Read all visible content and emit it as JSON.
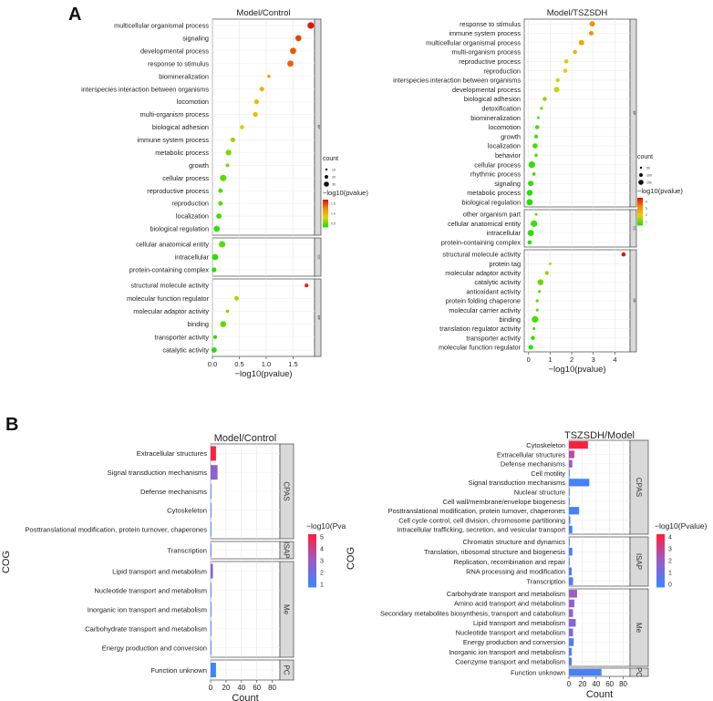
{
  "figure": {
    "panel_a_label": "A",
    "panel_b_label": "B"
  },
  "chart_data": [
    {
      "id": "A1",
      "type": "scatter",
      "title": "Model/Control",
      "xlabel": "−log10(pvalue)",
      "xlim": [
        0,
        1.9
      ],
      "xticks": [
        0.0,
        0.5,
        1.0,
        1.5
      ],
      "xtick_labels": [
        "0.0",
        "0.5",
        "1.0",
        "1.5"
      ],
      "legend_size_title": "count",
      "legend_size_labels": [
        "10",
        "20",
        "30"
      ],
      "legend_color_title": "−log10(pvalue)",
      "legend_color_labels": [
        "1.5",
        "1.0",
        "0.5"
      ],
      "groups": [
        {
          "name": "BP",
          "terms": [
            {
              "term": "multicellular organismal process",
              "x": 1.83,
              "count": 32
            },
            {
              "term": "signaling",
              "x": 1.6,
              "count": 26
            },
            {
              "term": "developmental process",
              "x": 1.5,
              "count": 28
            },
            {
              "term": "response to stimulus",
              "x": 1.45,
              "count": 27
            },
            {
              "term": "biomineralization",
              "x": 1.05,
              "count": 3
            },
            {
              "term": "interspecies interaction between organisms",
              "x": 0.92,
              "count": 12
            },
            {
              "term": "locomotion",
              "x": 0.82,
              "count": 13
            },
            {
              "term": "multi-organism process",
              "x": 0.8,
              "count": 14
            },
            {
              "term": "biological adhesion",
              "x": 0.55,
              "count": 9
            },
            {
              "term": "immune system process",
              "x": 0.38,
              "count": 12
            },
            {
              "term": "metabolic process",
              "x": 0.3,
              "count": 22
            },
            {
              "term": "growth",
              "x": 0.28,
              "count": 4
            },
            {
              "term": "cellular process",
              "x": 0.2,
              "count": 30
            },
            {
              "term": "reproductive process",
              "x": 0.15,
              "count": 10
            },
            {
              "term": "reproduction",
              "x": 0.15,
              "count": 10
            },
            {
              "term": "localization",
              "x": 0.12,
              "count": 17
            },
            {
              "term": "biological regulation",
              "x": 0.08,
              "count": 26
            }
          ]
        },
        {
          "name": "CC",
          "terms": [
            {
              "term": "cellular anatomical entity",
              "x": 0.18,
              "count": 30
            },
            {
              "term": "intracellular",
              "x": 0.05,
              "count": 28
            },
            {
              "term": "protein-containing complex",
              "x": 0.03,
              "count": 12
            }
          ]
        },
        {
          "name": "MF",
          "terms": [
            {
              "term": "structural molecule activity",
              "x": 1.75,
              "count": 6
            },
            {
              "term": "molecular function regulator",
              "x": 0.45,
              "count": 10
            },
            {
              "term": "molecular adaptor activity",
              "x": 0.28,
              "count": 3
            },
            {
              "term": "binding",
              "x": 0.2,
              "count": 25
            },
            {
              "term": "transporter activity",
              "x": 0.05,
              "count": 6
            },
            {
              "term": "catalytic activity",
              "x": 0.03,
              "count": 18
            }
          ]
        }
      ]
    },
    {
      "id": "A2",
      "type": "scatter",
      "title": "Model/TSZSDH",
      "xlabel": "−log10(pvalue)",
      "xlim": [
        -0.2,
        4.7
      ],
      "xticks": [
        0,
        1,
        2,
        3,
        4
      ],
      "xtick_labels": [
        "0",
        "1",
        "2",
        "3",
        "4"
      ],
      "legend_size_title": "count",
      "legend_size_labels": [
        "50",
        "100",
        "150"
      ],
      "legend_color_title": "−log10(pvalue)",
      "legend_color_labels": [
        "4",
        "3",
        "2",
        "1"
      ],
      "groups": [
        {
          "name": "BP",
          "terms": [
            {
              "term": "response to stimulus",
              "x": 2.95,
              "count": 90
            },
            {
              "term": "immune system process",
              "x": 2.9,
              "count": 50
            },
            {
              "term": "multicellular organismal process",
              "x": 2.45,
              "count": 100
            },
            {
              "term": "multi-organism process",
              "x": 2.15,
              "count": 40
            },
            {
              "term": "reproductive process",
              "x": 1.75,
              "count": 40
            },
            {
              "term": "reproduction",
              "x": 1.7,
              "count": 40
            },
            {
              "term": "interspecies interaction between organisms",
              "x": 1.35,
              "count": 35
            },
            {
              "term": "developmental process",
              "x": 1.3,
              "count": 100
            },
            {
              "term": "biological adhesion",
              "x": 0.75,
              "count": 35
            },
            {
              "term": "detoxification",
              "x": 0.6,
              "count": 8
            },
            {
              "term": "biomineralization",
              "x": 0.45,
              "count": 6
            },
            {
              "term": "locomotion",
              "x": 0.4,
              "count": 40
            },
            {
              "term": "growth",
              "x": 0.35,
              "count": 30
            },
            {
              "term": "localization",
              "x": 0.3,
              "count": 80
            },
            {
              "term": "behavior",
              "x": 0.35,
              "count": 15
            },
            {
              "term": "cellular process",
              "x": 0.15,
              "count": 160
            },
            {
              "term": "rhythmic process",
              "x": 0.25,
              "count": 15
            },
            {
              "term": "signaling",
              "x": 0.1,
              "count": 100
            },
            {
              "term": "metabolic process",
              "x": 0.05,
              "count": 120
            },
            {
              "term": "biological regulation",
              "x": 0.05,
              "count": 140
            }
          ]
        },
        {
          "name": "CC",
          "terms": [
            {
              "term": "other organism part",
              "x": 0.35,
              "count": 5
            },
            {
              "term": "cellular anatomical entity",
              "x": 0.25,
              "count": 160
            },
            {
              "term": "intracellular",
              "x": 0.1,
              "count": 140
            },
            {
              "term": "protein-containing complex",
              "x": 0.05,
              "count": 40
            }
          ]
        },
        {
          "name": "MF",
          "terms": [
            {
              "term": "structural molecule activity",
              "x": 4.4,
              "count": 40
            },
            {
              "term": "protein tag",
              "x": 1.0,
              "count": 5
            },
            {
              "term": "molecular adaptor activity",
              "x": 0.85,
              "count": 25
            },
            {
              "term": "catalytic activity",
              "x": 0.55,
              "count": 120
            },
            {
              "term": "antioxidant activity",
              "x": 0.5,
              "count": 8
            },
            {
              "term": "protein folding chaperone",
              "x": 0.4,
              "count": 8
            },
            {
              "term": "molecular carrier activity",
              "x": 0.4,
              "count": 8
            },
            {
              "term": "binding",
              "x": 0.3,
              "count": 160
            },
            {
              "term": "translation regulator activity",
              "x": 0.25,
              "count": 8
            },
            {
              "term": "transporter activity",
              "x": 0.2,
              "count": 40
            },
            {
              "term": "molecular function regulator",
              "x": 0.1,
              "count": 60
            }
          ]
        }
      ]
    },
    {
      "id": "B1",
      "type": "bar",
      "title": "Model/Control",
      "xlabel": "Count",
      "ylabel": "COG",
      "xlim": [
        0,
        90
      ],
      "xticks": [
        0,
        20,
        40,
        60,
        80
      ],
      "xtick_labels": [
        "0",
        "20",
        "40",
        "60",
        "80"
      ],
      "legend_title": "−log10(Pva",
      "legend_labels": [
        "5",
        "4",
        "3",
        "2",
        "1"
      ],
      "color_range": [
        0.5,
        5
      ],
      "groups": [
        {
          "name": "CPAS",
          "bars": [
            {
              "category": "Extracellular structures",
              "count": 7,
              "logp": 5.0
            },
            {
              "category": "Signal transduction mechanisms",
              "count": 9,
              "logp": 2.5
            },
            {
              "category": "Defense mechanisms",
              "count": 1,
              "logp": 0.8
            },
            {
              "category": "Cytoskeleton",
              "count": 1,
              "logp": 0.8
            },
            {
              "category": "Posttranslational modification, protein turnover, chaperones",
              "count": 1,
              "logp": 0.8
            }
          ]
        },
        {
          "name": "ISAP",
          "bars": [
            {
              "category": "Transcription",
              "count": 1,
              "logp": 0.7
            }
          ]
        },
        {
          "name": "Me",
          "bars": [
            {
              "category": "Lipid transport and metabolism",
              "count": 3,
              "logp": 2.4
            },
            {
              "category": "Nucleotide transport and metabolism",
              "count": 1,
              "logp": 0.8
            },
            {
              "category": "Inorganic ion transport and metabolism",
              "count": 1,
              "logp": 0.8
            },
            {
              "category": "Carbohydrate transport and metabolism",
              "count": 1,
              "logp": 0.8
            },
            {
              "category": "Energy production and conversion",
              "count": 1,
              "logp": 0.8
            }
          ]
        },
        {
          "name": "PC",
          "bars": [
            {
              "category": "Function unknown",
              "count": 7,
              "logp": 0.6
            }
          ]
        }
      ]
    },
    {
      "id": "B2",
      "type": "bar",
      "title": "TSZSDH/Model",
      "xlabel": "Count",
      "ylabel": "COG",
      "xlim": [
        0,
        90
      ],
      "xticks": [
        0,
        20,
        40,
        60,
        80
      ],
      "xtick_labels": [
        "0",
        "20",
        "40",
        "60",
        "80"
      ],
      "legend_title": "−log10(Pvalue)",
      "legend_labels": [
        "4",
        "3",
        "2",
        "1",
        "0"
      ],
      "color_range": [
        0,
        4.3
      ],
      "groups": [
        {
          "name": "CPAS",
          "bars": [
            {
              "category": "Cytoskeleton",
              "count": 28,
              "logp": 4.3
            },
            {
              "category": "Extracellular structures",
              "count": 8,
              "logp": 2.8
            },
            {
              "category": "Defense mechanisms",
              "count": 5,
              "logp": 2.0
            },
            {
              "category": "Cell motility",
              "count": 1,
              "logp": 0.3
            },
            {
              "category": "Signal transduction mechanisms",
              "count": 30,
              "logp": 0.2
            },
            {
              "category": "Nuclear structure",
              "count": 1,
              "logp": 0.3
            },
            {
              "category": "Cell wall/membrane/envelope biogenesis",
              "count": 1,
              "logp": 0.3
            },
            {
              "category": "Posttranslational modification, protein turnover, chaperones",
              "count": 15,
              "logp": 0.2
            },
            {
              "category": "Cell cycle control, cell division, chromosome partitioning",
              "count": 2,
              "logp": 0.3
            },
            {
              "category": "Intracellular trafficking, secretion, and vesicular transport",
              "count": 5,
              "logp": 0.2
            }
          ]
        },
        {
          "name": "ISAP",
          "bars": [
            {
              "category": "Chromatin structure and dynamics",
              "count": 1,
              "logp": 0.3
            },
            {
              "category": "Translation, ribosomal structure and biogenesis",
              "count": 5,
              "logp": 0.3
            },
            {
              "category": "Replication, recombination and repair",
              "count": 1,
              "logp": 0.3
            },
            {
              "category": "RNA processing and modification",
              "count": 4,
              "logp": 0.3
            },
            {
              "category": "Transcription",
              "count": 6,
              "logp": 0.2
            }
          ]
        },
        {
          "name": "Me",
          "bars": [
            {
              "category": "Carbohydrate transport and metabolism",
              "count": 12,
              "logp": 2.2
            },
            {
              "category": "Amino acid transport and metabolism",
              "count": 8,
              "logp": 2.0
            },
            {
              "category": "Secondary metabolites biosynthesis, transport and catabolism",
              "count": 6,
              "logp": 1.8
            },
            {
              "category": "Lipid transport and metabolism",
              "count": 10,
              "logp": 1.6
            },
            {
              "category": "Nucleotide transport and metabolism",
              "count": 6,
              "logp": 1.5
            },
            {
              "category": "Energy production and conversion",
              "count": 7,
              "logp": 0.5
            },
            {
              "category": "Inorganic ion transport and metabolism",
              "count": 4,
              "logp": 0.4
            },
            {
              "category": "Coenzyme transport and metabolism",
              "count": 4,
              "logp": 0.4
            }
          ]
        },
        {
          "name": "PC",
          "bars": [
            {
              "category": "Function unknown",
              "count": 48,
              "logp": 0.3
            }
          ]
        }
      ]
    }
  ]
}
